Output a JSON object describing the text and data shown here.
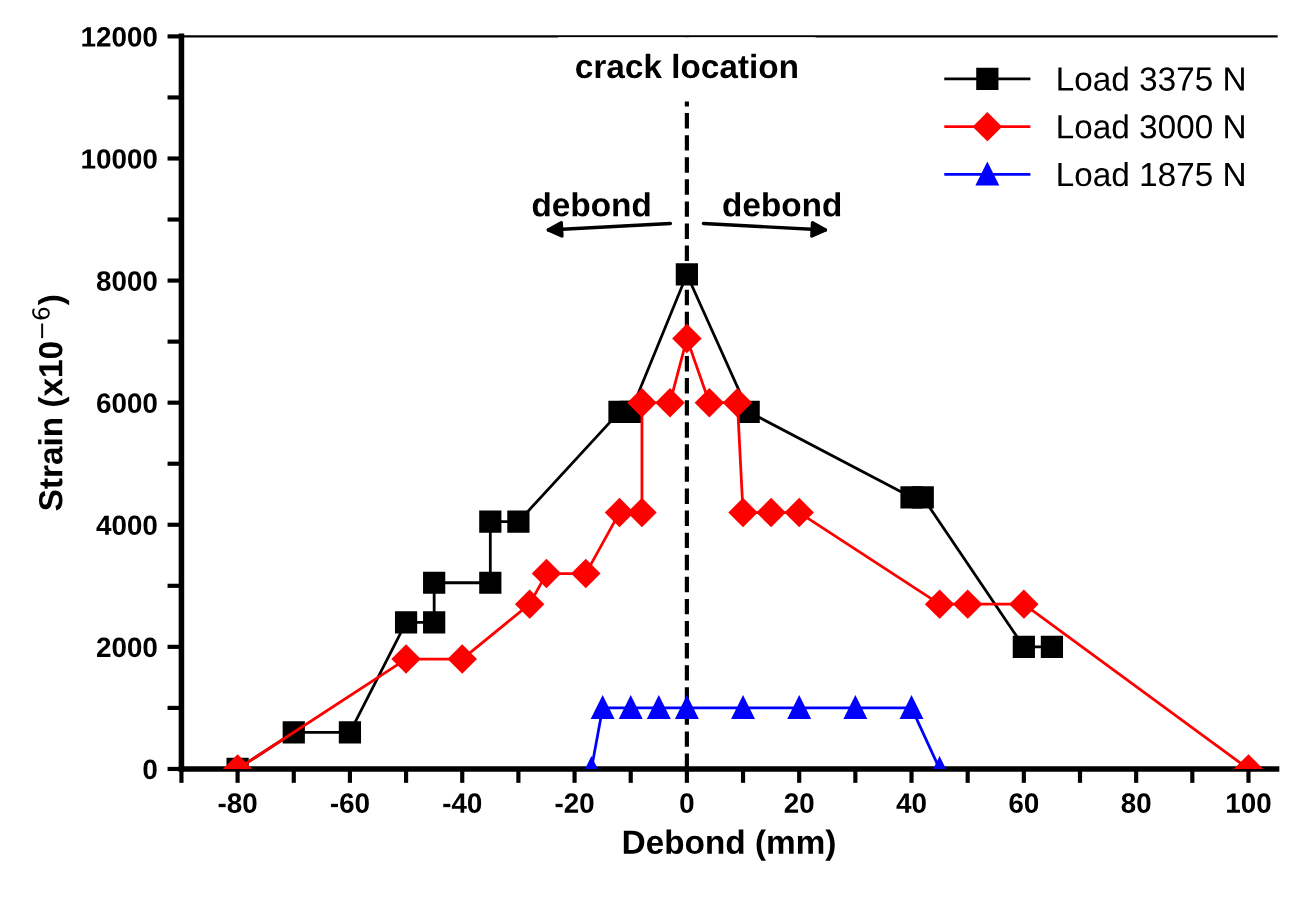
{
  "chart_data": {
    "type": "line",
    "xlabel": "Debond (mm)",
    "ylabel": "Strain (x10$^{−6}$)",
    "xlim": [
      -90,
      105
    ],
    "ylim": [
      0,
      12000
    ],
    "xticks": [
      {
        "value": -90,
        "label": null
      },
      -80,
      {
        "value": -70,
        "label": null
      },
      -60,
      {
        "value": -50,
        "label": null
      },
      -40,
      {
        "value": -30,
        "label": null
      },
      -20,
      {
        "value": -10,
        "label": null
      },
      0,
      {
        "value": 10,
        "label": null
      },
      20,
      {
        "value": 30,
        "label": null
      },
      40,
      {
        "value": 50,
        "label": null
      },
      60,
      {
        "value": 70,
        "label": null
      },
      80,
      {
        "value": 90,
        "label": null
      },
      100
    ],
    "yticks": [
      0,
      {
        "value": 1000,
        "label": null
      },
      2000,
      {
        "value": 3000,
        "label": null
      },
      4000,
      {
        "value": 5000,
        "label": null
      },
      6000,
      {
        "value": 7000,
        "label": null
      },
      8000,
      {
        "value": 9000,
        "label": null
      },
      10000,
      {
        "value": 11000,
        "label": null
      },
      12000
    ],
    "grid": false,
    "legend": "top right",
    "line_style": "solid",
    "series": [
      {
        "name": "Load 3375 N",
        "color": "#000000",
        "marker": "square",
        "x": [
          -80,
          -70,
          -60,
          -50,
          -45,
          -45,
          -35,
          -35,
          -30,
          -12,
          -10,
          0,
          11,
          40,
          42,
          60,
          65
        ],
        "values": [
          0,
          600,
          600,
          2400,
          2400,
          3050,
          3050,
          4050,
          4050,
          5850,
          5850,
          8100,
          5850,
          4450,
          4450,
          2000,
          2000
        ]
      },
      {
        "name": "Load 3000 N",
        "color": "#ff0000",
        "marker": "diamond",
        "x": [
          -80,
          -50,
          -40,
          -28,
          -25,
          -18,
          -12,
          -8,
          -8,
          -3,
          0,
          4,
          9,
          10,
          15,
          20,
          45,
          50,
          60,
          100
        ],
        "values": [
          0,
          1800,
          1800,
          2700,
          3200,
          3200,
          4200,
          4200,
          6000,
          6000,
          7050,
          6000,
          6000,
          4200,
          4200,
          4200,
          2700,
          2700,
          2700,
          0
        ]
      },
      {
        "name": "Load 1875 N",
        "color": "#0000ff",
        "marker": "triangle",
        "x": [
          -17,
          -15,
          -10,
          -5,
          0,
          10,
          20,
          30,
          40,
          45
        ],
        "values": [
          0,
          1000,
          1000,
          1000,
          1000,
          1000,
          1000,
          1000,
          1000,
          0
        ]
      }
    ],
    "ref_lines": [
      {
        "axis": "x",
        "value": 0,
        "label": "crack location",
        "color": "#000000",
        "line_style": "dashed"
      }
    ],
    "annotations": [
      "debond",
      "debond"
    ]
  }
}
